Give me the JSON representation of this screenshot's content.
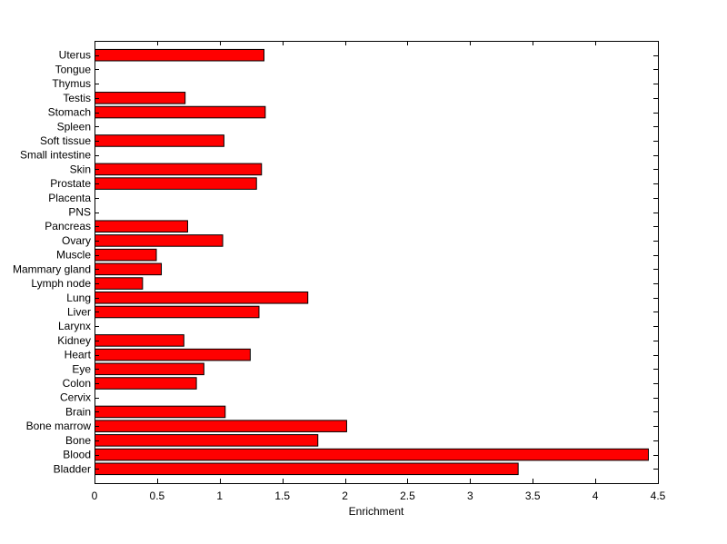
{
  "chart_data": {
    "type": "bar",
    "orientation": "horizontal",
    "title": "",
    "xlabel": "Enrichment",
    "ylabel": "",
    "xlim": [
      0,
      4.5
    ],
    "xticks": [
      0,
      0.5,
      1,
      1.5,
      2,
      2.5,
      3,
      3.5,
      4,
      4.5
    ],
    "xtick_labels": [
      "0",
      "0.5",
      "1",
      "1.5",
      "2",
      "2.5",
      "3",
      "3.5",
      "4",
      "4.5"
    ],
    "grid": false,
    "bar_color": "#ff0000",
    "bar_edge_color": "#000000",
    "categories": [
      "Uterus",
      "Tongue",
      "Thymus",
      "Testis",
      "Stomach",
      "Spleen",
      "Soft tissue",
      "Small intestine",
      "Skin",
      "Prostate",
      "Placenta",
      "PNS",
      "Pancreas",
      "Ovary",
      "Muscle",
      "Mammary gland",
      "Lymph node",
      "Lung",
      "Liver",
      "Larynx",
      "Kidney",
      "Heart",
      "Eye",
      "Colon",
      "Cervix",
      "Brain",
      "Bone marrow",
      "Bone",
      "Blood",
      "Bladder"
    ],
    "values": [
      1.35,
      0,
      0,
      0.72,
      1.36,
      0,
      1.03,
      0,
      1.33,
      1.29,
      0,
      0,
      0.74,
      1.02,
      0.49,
      0.53,
      0.38,
      1.7,
      1.31,
      0,
      0.71,
      1.24,
      0.87,
      0.81,
      0,
      1.04,
      2.01,
      1.78,
      4.42,
      3.38
    ]
  }
}
